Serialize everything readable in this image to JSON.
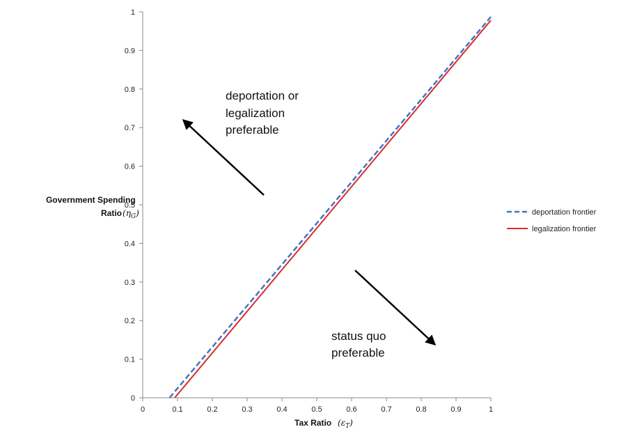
{
  "chart_data": {
    "type": "line",
    "xlabel": "Tax Ratio",
    "xlabel_symbol": "ε",
    "xlabel_symbol_sub": "T",
    "ylabel_line1": "Government Spending",
    "ylabel_line2": "Ratio",
    "ylabel_symbol": "η",
    "ylabel_symbol_sub": "G",
    "xlim": [
      0,
      1
    ],
    "ylim": [
      0,
      1
    ],
    "x_ticks": [
      "0",
      "0.1",
      "0.2",
      "0.3",
      "0.4",
      "0.5",
      "0.6",
      "0.7",
      "0.8",
      "0.9",
      "1"
    ],
    "y_ticks": [
      "0",
      "0.1",
      "0.2",
      "0.3",
      "0.4",
      "0.5",
      "0.6",
      "0.7",
      "0.8",
      "0.9",
      "1"
    ],
    "grid": false,
    "legend_position": "right",
    "series": [
      {
        "name": "deportation frontier",
        "color": "#4472C4",
        "style": "dashed",
        "x": [
          0.077,
          1.0
        ],
        "y": [
          0.0,
          0.987
        ]
      },
      {
        "name": "legalization frontier",
        "color": "#D92B2B",
        "style": "solid",
        "x": [
          0.092,
          1.0
        ],
        "y": [
          0.0,
          0.978
        ]
      }
    ],
    "annotations": [
      {
        "lines": [
          "deportation or",
          "legalization",
          "preferable"
        ],
        "arrow_direction": "up-left"
      },
      {
        "lines": [
          "status quo",
          "preferable"
        ],
        "arrow_direction": "down-right"
      }
    ]
  }
}
